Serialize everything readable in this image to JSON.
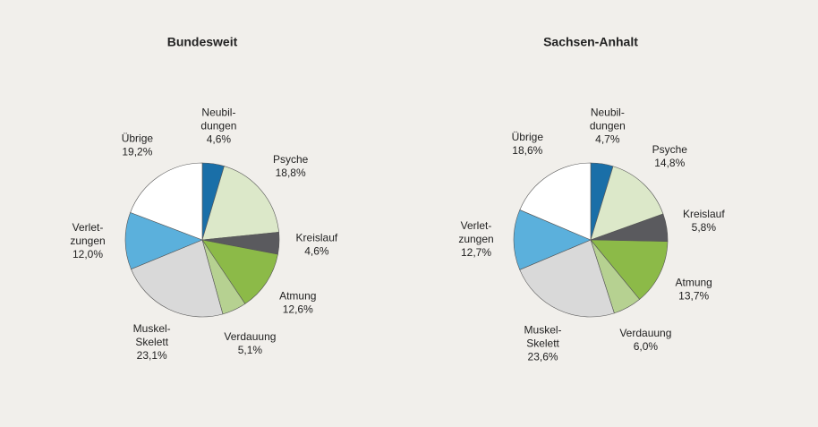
{
  "chart_data": [
    {
      "type": "pie",
      "title": "Bundesweit",
      "categories": [
        [
          "Neubil-",
          "dungen"
        ],
        [
          "Psyche"
        ],
        [
          "Kreislauf"
        ],
        [
          "Atmung"
        ],
        [
          "Verdauung"
        ],
        [
          "Muskel-",
          "Skelett"
        ],
        [
          "Verlet-",
          "zungen"
        ],
        [
          "Übrige"
        ]
      ],
      "values": [
        4.6,
        18.8,
        4.6,
        12.6,
        5.1,
        23.1,
        12.0,
        19.2
      ],
      "value_labels": [
        "4,6%",
        "18,8%",
        "4,6%",
        "12,6%",
        "5,1%",
        "23,1%",
        "12,0%",
        "19,2%"
      ],
      "colors": [
        "#1a6fa8",
        "#dce8c9",
        "#5a5a5e",
        "#8cba48",
        "#b6d191",
        "#d9d9d9",
        "#5bb0dc",
        "#ffffff"
      ]
    },
    {
      "type": "pie",
      "title": "Sachsen-Anhalt",
      "categories": [
        [
          "Neubil-",
          "dungen"
        ],
        [
          "Psyche"
        ],
        [
          "Kreislauf"
        ],
        [
          "Atmung"
        ],
        [
          "Verdauung"
        ],
        [
          "Muskel-",
          "Skelett"
        ],
        [
          "Verlet-",
          "zungen"
        ],
        [
          "Übrige"
        ]
      ],
      "values": [
        4.7,
        14.8,
        5.8,
        13.7,
        6.0,
        23.6,
        12.7,
        18.6
      ],
      "value_labels": [
        "4,7%",
        "14,8%",
        "5,8%",
        "13,7%",
        "6,0%",
        "23,6%",
        "12,7%",
        "18,6%"
      ],
      "colors": [
        "#1a6fa8",
        "#dce8c9",
        "#5a5a5e",
        "#8cba48",
        "#b6d191",
        "#d9d9d9",
        "#5bb0dc",
        "#ffffff"
      ]
    }
  ]
}
